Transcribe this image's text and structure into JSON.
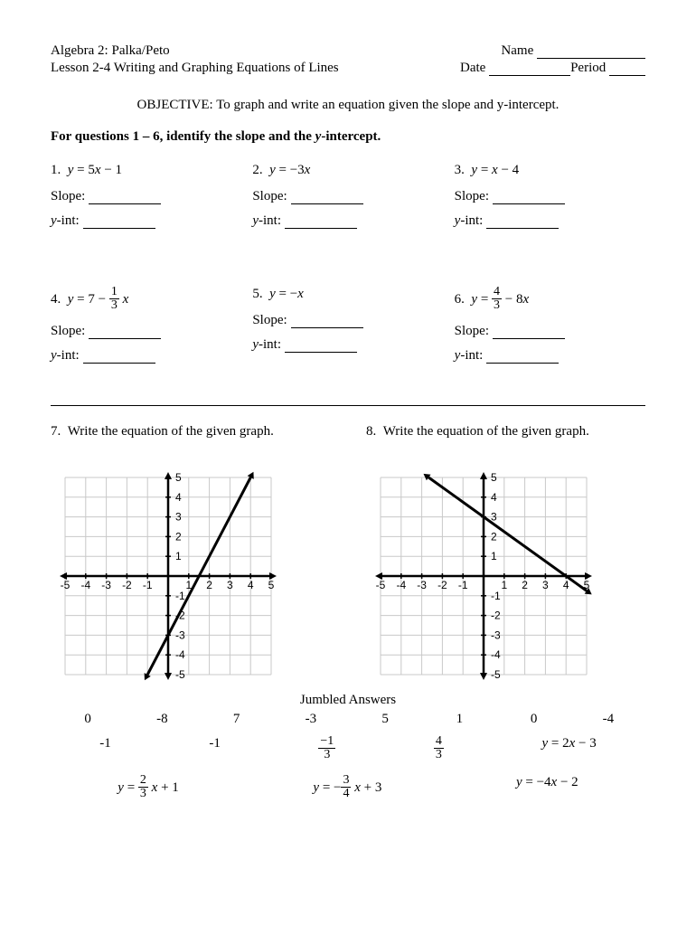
{
  "header": {
    "course": "Algebra 2:  Palka/Peto",
    "lesson": "Lesson 2-4 Writing and Graphing Equations of Lines",
    "name_label": "Name",
    "date_label": "Date",
    "period_label": "Period"
  },
  "objective": "OBJECTIVE:  To graph and write an equation given the slope and y-intercept.",
  "instructions": "For questions 1 – 6, identify the slope and the y-intercept.",
  "labels": {
    "slope": "Slope:",
    "yint": "y-int:"
  },
  "questions": {
    "q1": {
      "num": "1.",
      "eq_pre": "y = 5",
      "eq_var": "x",
      "eq_post": " − 1"
    },
    "q2": {
      "num": "2.",
      "eq_pre": "y = −3",
      "eq_var": "x",
      "eq_post": ""
    },
    "q3": {
      "num": "3.",
      "eq_pre": "y = ",
      "eq_var": "x",
      "eq_post": " − 4"
    },
    "q4": {
      "num": "4.",
      "eq_pre": "y = 7 − ",
      "frac_num": "1",
      "frac_den": "3",
      "eq_var": "x"
    },
    "q5": {
      "num": "5.",
      "eq_pre": "y = −",
      "eq_var": "x",
      "eq_post": ""
    },
    "q6": {
      "num": "6.",
      "eq_pre": "y = ",
      "frac_num": "4",
      "frac_den": "3",
      "eq_post": " − 8",
      "eq_var": "x"
    },
    "q7": {
      "num": "7.",
      "text": "Write the equation of the given graph."
    },
    "q8": {
      "num": "8.",
      "text": "Write the equation of the given graph."
    }
  },
  "graphs": {
    "g7": {
      "xlim": [
        -5,
        5
      ],
      "ylim": [
        -5,
        5
      ],
      "line": {
        "slope": 2,
        "intercept": -3
      },
      "grid_color": "#c8c8c8",
      "axis_color": "#000000",
      "line_color": "#000000",
      "tick_fontsize": 12,
      "line_width": 3,
      "x_ticks": [
        -5,
        -4,
        -3,
        -2,
        -1,
        1,
        2,
        3,
        4,
        5
      ],
      "y_ticks": [
        -5,
        -4,
        -3,
        -2,
        -1,
        1,
        2,
        3,
        4,
        5
      ]
    },
    "g8": {
      "xlim": [
        -5,
        5
      ],
      "ylim": [
        -5,
        5
      ],
      "line": {
        "slope": -0.75,
        "intercept": 3
      },
      "grid_color": "#c8c8c8",
      "axis_color": "#000000",
      "line_color": "#000000",
      "tick_fontsize": 12,
      "line_width": 3,
      "x_ticks": [
        -5,
        -4,
        -3,
        -2,
        -1,
        1,
        2,
        3,
        4,
        5
      ],
      "y_ticks": [
        -5,
        -4,
        -3,
        -2,
        -1,
        1,
        2,
        3,
        4,
        5
      ]
    }
  },
  "jumbled": {
    "title": "Jumbled Answers",
    "row1": [
      "0",
      "-8",
      "7",
      "-3",
      "5",
      "1",
      "0",
      "-4"
    ],
    "row2": {
      "a": "-1",
      "b": "-1",
      "frac1": {
        "num": "−1",
        "den": "3"
      },
      "frac2": {
        "num": "4",
        "den": "3"
      },
      "eq1_pre": "y = 2",
      "eq1_var": "x",
      "eq1_post": " − 3"
    },
    "row3": {
      "eq1": {
        "pre": "y = ",
        "frac_num": "2",
        "frac_den": "3",
        "var": "x",
        "post": " + 1"
      },
      "eq2": {
        "pre": "y = −",
        "frac_num": "3",
        "frac_den": "4",
        "var": "x",
        "post": " + 3"
      },
      "eq3": {
        "pre": "y = −4",
        "var": "x",
        "post": " − 2"
      }
    }
  }
}
